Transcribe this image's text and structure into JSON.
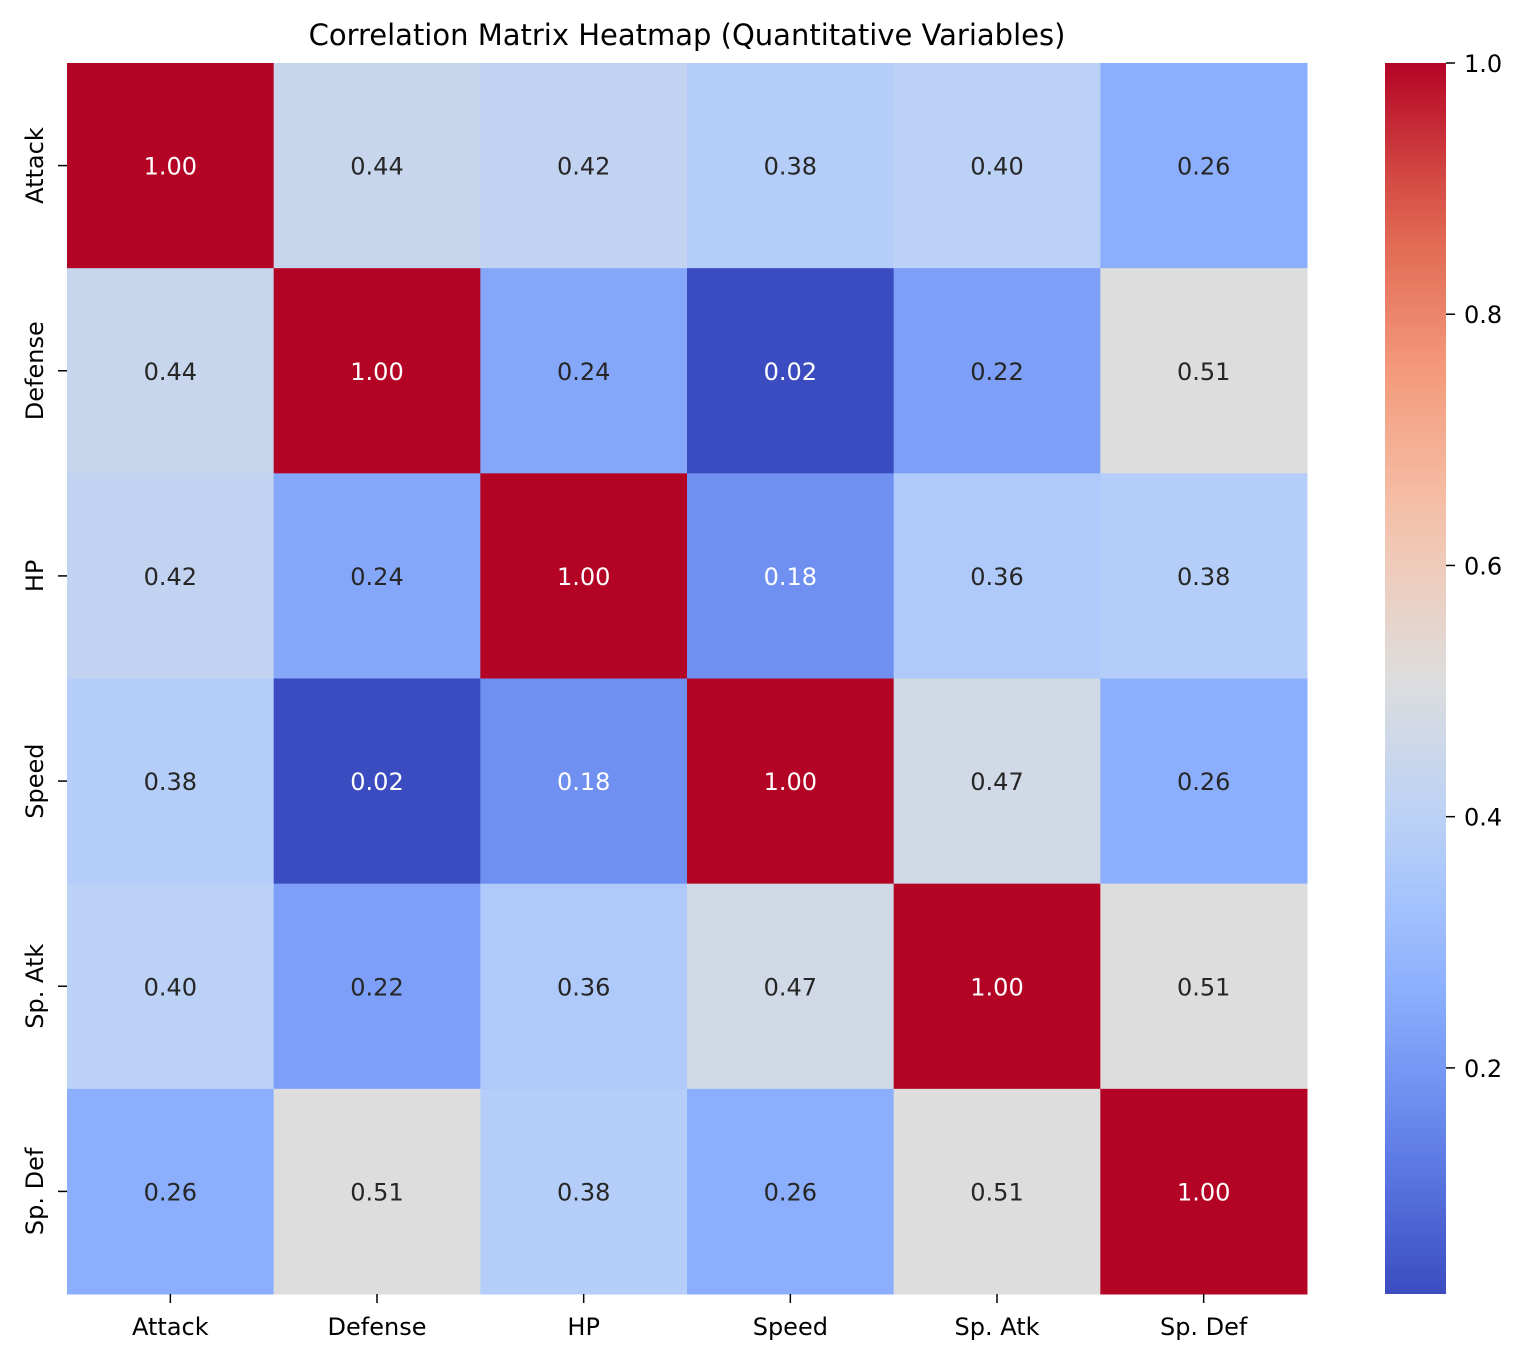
{
  "chart_data": {
    "type": "heatmap",
    "title": "Correlation Matrix Heatmap (Quantitative Variables)",
    "xlabel": "",
    "ylabel": "",
    "x_categories": [
      "Attack",
      "Defense",
      "HP",
      "Speed",
      "Sp. Atk",
      "Sp. Def"
    ],
    "y_categories": [
      "Attack",
      "Defense",
      "HP",
      "Speed",
      "Sp. Atk",
      "Sp. Def"
    ],
    "values": [
      [
        1.0,
        0.44,
        0.42,
        0.38,
        0.4,
        0.26
      ],
      [
        0.44,
        1.0,
        0.24,
        0.02,
        0.22,
        0.51
      ],
      [
        0.42,
        0.24,
        1.0,
        0.18,
        0.36,
        0.38
      ],
      [
        0.38,
        0.02,
        0.18,
        1.0,
        0.47,
        0.26
      ],
      [
        0.4,
        0.22,
        0.36,
        0.47,
        1.0,
        0.51
      ],
      [
        0.26,
        0.51,
        0.38,
        0.26,
        0.51,
        1.0
      ]
    ],
    "value_format": "0.00",
    "colormap": "coolwarm",
    "colorbar": {
      "range": [
        0.02,
        1.0
      ],
      "ticks": [
        0.2,
        0.4,
        0.6,
        0.8,
        1.0
      ],
      "tick_labels": [
        "0.2",
        "0.4",
        "0.6",
        "0.8",
        "1.0"
      ],
      "placement": "right"
    },
    "grid": false
  }
}
